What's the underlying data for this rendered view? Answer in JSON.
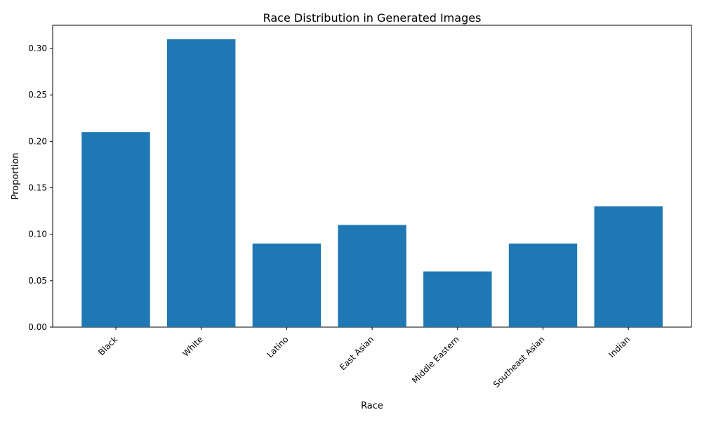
{
  "chart_data": {
    "type": "bar",
    "title": "Race Distribution in Generated Images",
    "xlabel": "Race",
    "ylabel": "Proportion",
    "categories": [
      "Black",
      "White",
      "Latino",
      "East Asian",
      "Middle Eastern",
      "Southeast Asian",
      "Indian"
    ],
    "values": [
      0.21,
      0.31,
      0.09,
      0.11,
      0.06,
      0.09,
      0.13
    ],
    "ylim": [
      0,
      0.325
    ],
    "yticks": [
      0.0,
      0.05,
      0.1,
      0.15,
      0.2,
      0.25,
      0.3
    ],
    "ytick_labels": [
      "0.00",
      "0.05",
      "0.10",
      "0.15",
      "0.20",
      "0.25",
      "0.30"
    ],
    "bar_color": "#1f77b4",
    "grid": false,
    "legend": "none",
    "xtick_rotation": 45
  }
}
